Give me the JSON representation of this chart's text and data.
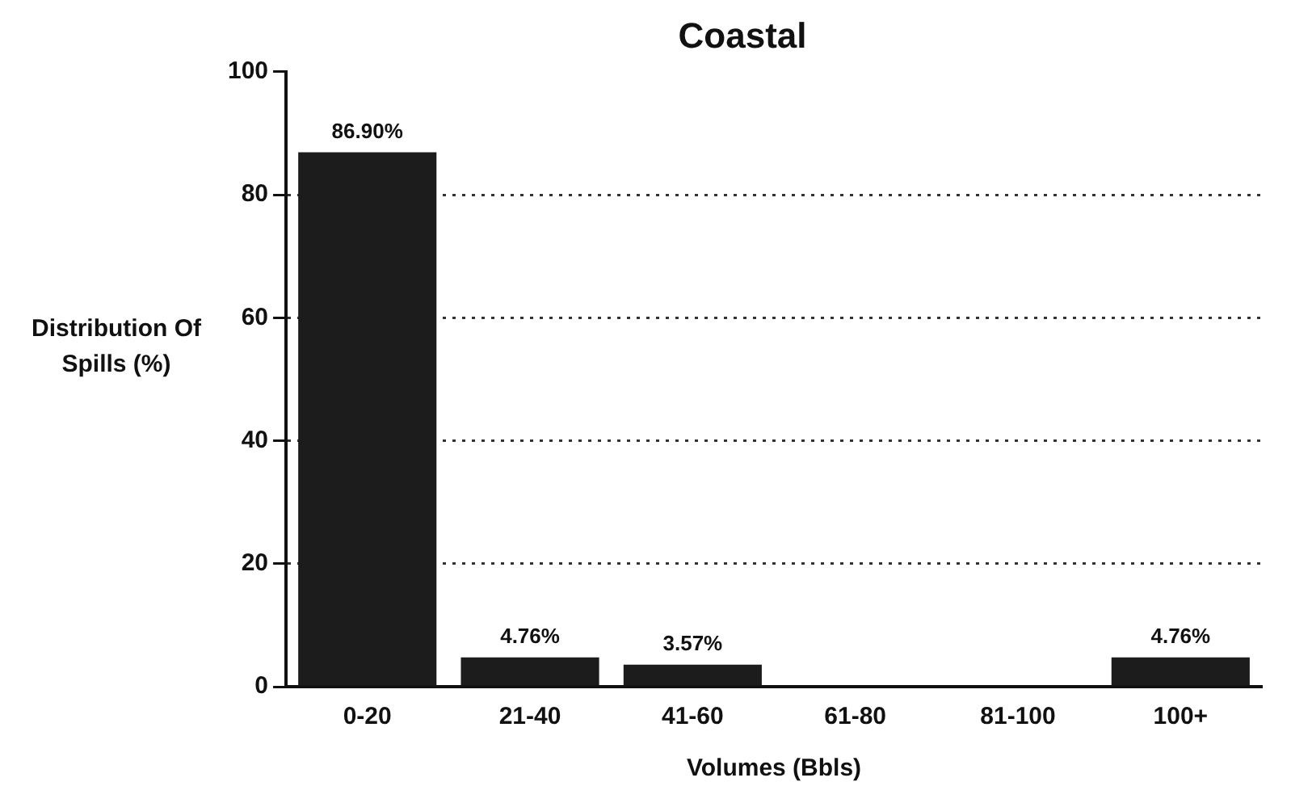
{
  "chart_data": {
    "type": "bar",
    "title": "Coastal",
    "xlabel": "Volumes (Bbls)",
    "ylabel": "Distribution Of Spills (%)",
    "categories": [
      "0-20",
      "21-40",
      "41-60",
      "61-80",
      "81-100",
      "100+"
    ],
    "values": [
      86.9,
      4.76,
      3.57,
      0,
      0,
      4.76
    ],
    "value_labels": [
      "86.90%",
      "4.76%",
      "3.57%",
      null,
      null,
      "4.76%"
    ],
    "color": "#1c1c1c",
    "ylim": [
      0,
      100
    ],
    "yticks": [
      0,
      20,
      40,
      60,
      80,
      100
    ],
    "grid": "y",
    "line_style": "dotted",
    "legend": false
  }
}
